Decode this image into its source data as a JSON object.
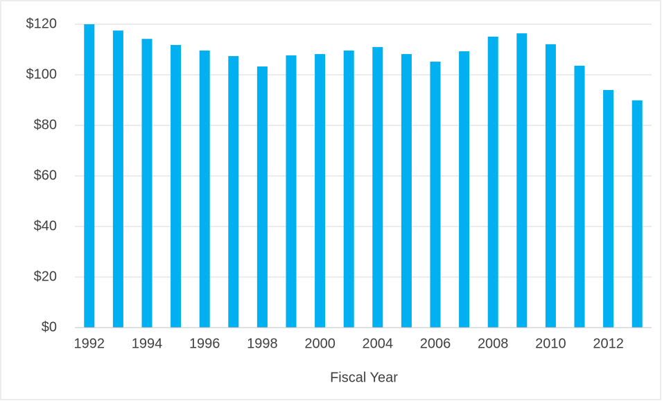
{
  "chart_data": {
    "type": "bar",
    "x_label": "Fiscal Year",
    "categories": [
      "1992",
      null,
      "1994",
      null,
      "1996",
      null,
      "1998",
      null,
      "2000",
      null,
      "2004",
      null,
      "2006",
      null,
      "2008",
      null,
      "2010",
      null,
      "2012",
      null
    ],
    "values": [
      120,
      117.5,
      114.2,
      111.8,
      109.6,
      107.4,
      103.3,
      107.7,
      108.2,
      109.6,
      111,
      108.2,
      105.2,
      109.3,
      115.1,
      116.4,
      112.1,
      103.6,
      94,
      89.9
    ],
    "color": "#00b0f0",
    "ylim": [
      0,
      120
    ],
    "yticks": [
      {
        "value": 0,
        "label": "$0"
      },
      {
        "value": 20,
        "label": "$20"
      },
      {
        "value": 40,
        "label": "$40"
      },
      {
        "value": 60,
        "label": "$60"
      },
      {
        "value": 80,
        "label": "$80"
      },
      {
        "value": 100,
        "label": "$100"
      },
      {
        "value": 120,
        "label": "$120"
      }
    ],
    "grid": true
  }
}
